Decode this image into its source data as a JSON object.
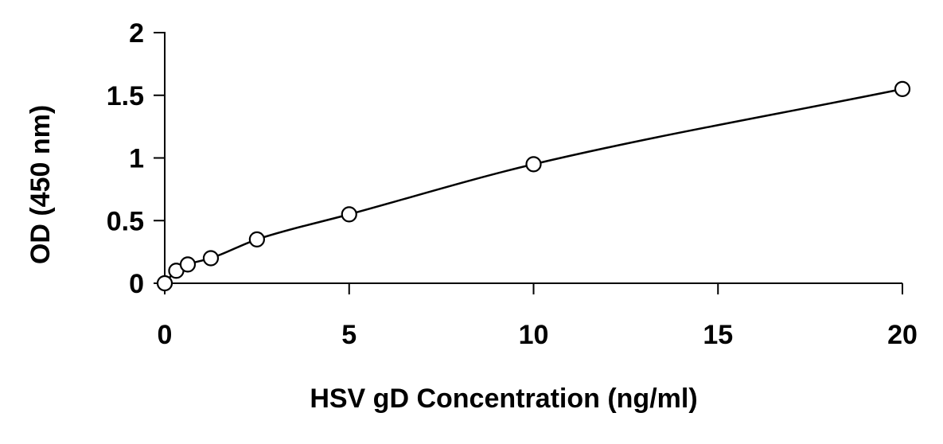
{
  "chart_data": {
    "type": "scatter",
    "title": "",
    "xlabel": "HSV gD Concentration (ng/ml)",
    "ylabel": "OD (450 nm)",
    "xlim": [
      0,
      20
    ],
    "ylim": [
      0,
      2
    ],
    "x_ticks": [
      0,
      5,
      10,
      15,
      20
    ],
    "y_ticks": [
      0,
      0.5,
      1,
      1.5,
      2
    ],
    "x_tick_labels": [
      "0",
      "5",
      "10",
      "15",
      "20"
    ],
    "y_tick_labels": [
      "0",
      "0.5",
      "1",
      "1.5",
      "2"
    ],
    "grid": false,
    "legend": "none",
    "marker": "open-circle",
    "series": [
      {
        "x": [
          0,
          0.3125,
          0.625,
          1.25,
          2.5,
          5,
          10,
          20
        ],
        "y": [
          0.0,
          0.1,
          0.15,
          0.2,
          0.35,
          0.55,
          0.95,
          1.55
        ]
      }
    ],
    "fit_curve": true
  },
  "colors": {
    "axis": "#000000",
    "marker": "#000000",
    "curve": "#000000",
    "background": "#ffffff"
  }
}
